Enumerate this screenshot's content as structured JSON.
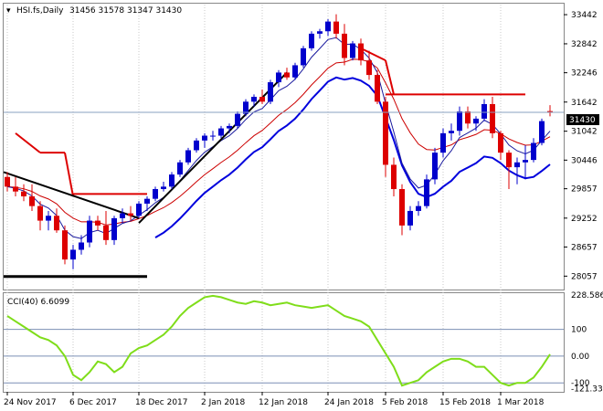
{
  "header": {
    "symbol": "HSI.fs,Daily",
    "ohlc": "31456 31578 31347 31430"
  },
  "price_axis": {
    "ticks": [
      "33442",
      "32842",
      "32246",
      "31642",
      "31042",
      "30446",
      "29857",
      "29252",
      "28657",
      "28057"
    ],
    "current_price_label": "31430"
  },
  "cci_panel": {
    "label": "CCI(40) 6.6099",
    "ticks": [
      "228.5862",
      "100",
      "0.00",
      "-100",
      "-121.337"
    ]
  },
  "date_axis": {
    "ticks": [
      "24 Nov 2017",
      "6 Dec 2017",
      "18 Dec 2017",
      "2 Jan 2018",
      "12 Jan 2018",
      "24 Jan 2018",
      "5 Feb 2018",
      "15 Feb 2018",
      "1 Mar 2018"
    ]
  },
  "colors": {
    "bull": "#0000cc",
    "bear": "#dd0000",
    "ma_fast": "#1a1a9e",
    "ma_slow": "#cc0000",
    "ma_long": "#0000dd",
    "stop_line": "#dd0000",
    "trendline": "#000000",
    "cci": "#7fdd1a",
    "grid": "#c8c8c8"
  },
  "chart_data": [
    {
      "type": "candlestick",
      "title": "HSI.fs,Daily",
      "ylim": [
        27800,
        33650
      ],
      "ohlc": [
        [
          30100,
          30200,
          29800,
          29900
        ],
        [
          29900,
          30100,
          29700,
          29800
        ],
        [
          29800,
          29950,
          29600,
          29700
        ],
        [
          29700,
          29950,
          29400,
          29500
        ],
        [
          29500,
          29600,
          29000,
          29200
        ],
        [
          29200,
          29400,
          29000,
          29300
        ],
        [
          29300,
          29450,
          28950,
          29000
        ],
        [
          29000,
          29100,
          28300,
          28400
        ],
        [
          28400,
          28700,
          28200,
          28600
        ],
        [
          28600,
          28900,
          28500,
          28750
        ],
        [
          28750,
          29300,
          28650,
          29200
        ],
        [
          29200,
          29300,
          29000,
          29100
        ],
        [
          29100,
          29400,
          28700,
          28800
        ],
        [
          28800,
          29300,
          28700,
          29250
        ],
        [
          29250,
          29450,
          29150,
          29350
        ],
        [
          29350,
          29500,
          29200,
          29300
        ],
        [
          29300,
          29600,
          29250,
          29550
        ],
        [
          29550,
          29700,
          29400,
          29650
        ],
        [
          29650,
          29900,
          29600,
          29850
        ],
        [
          29850,
          30000,
          29800,
          29900
        ],
        [
          29900,
          30200,
          29850,
          30150
        ],
        [
          30150,
          30450,
          30100,
          30400
        ],
        [
          30400,
          30700,
          30350,
          30650
        ],
        [
          30650,
          30900,
          30600,
          30850
        ],
        [
          30850,
          31000,
          30700,
          30950
        ],
        [
          30950,
          31050,
          30850,
          30950
        ],
        [
          30950,
          31150,
          30900,
          31100
        ],
        [
          31100,
          31200,
          31000,
          31150
        ],
        [
          31150,
          31450,
          31100,
          31400
        ],
        [
          31400,
          31700,
          31350,
          31650
        ],
        [
          31650,
          31800,
          31550,
          31750
        ],
        [
          31750,
          31900,
          31600,
          31650
        ],
        [
          31650,
          32100,
          31600,
          32050
        ],
        [
          32050,
          32300,
          31950,
          32250
        ],
        [
          32250,
          32350,
          32100,
          32150
        ],
        [
          32150,
          32450,
          32100,
          32400
        ],
        [
          32400,
          32800,
          32350,
          32750
        ],
        [
          32750,
          33100,
          32700,
          33050
        ],
        [
          33050,
          33150,
          32950,
          33100
        ],
        [
          33100,
          33350,
          33000,
          33300
        ],
        [
          33300,
          33450,
          32950,
          33050
        ],
        [
          33050,
          33250,
          32400,
          32550
        ],
        [
          32550,
          32900,
          32500,
          32850
        ],
        [
          32850,
          32950,
          32400,
          32500
        ],
        [
          32500,
          32700,
          32100,
          32200
        ],
        [
          32200,
          32300,
          31600,
          31650
        ],
        [
          31650,
          31750,
          30100,
          30350
        ],
        [
          30350,
          30500,
          29700,
          29850
        ],
        [
          29850,
          29950,
          28900,
          29100
        ],
        [
          29100,
          29500,
          29000,
          29400
        ],
        [
          29400,
          29600,
          29300,
          29500
        ],
        [
          29500,
          30150,
          29450,
          30050
        ],
        [
          30050,
          30700,
          29950,
          30600
        ],
        [
          30600,
          31100,
          30500,
          31000
        ],
        [
          31000,
          31200,
          30850,
          31050
        ],
        [
          31050,
          31550,
          30950,
          31450
        ],
        [
          31450,
          31550,
          31100,
          31200
        ],
        [
          31200,
          31350,
          31050,
          31300
        ],
        [
          31300,
          31700,
          31250,
          31600
        ],
        [
          31600,
          31750,
          30900,
          31000
        ],
        [
          31000,
          31050,
          30450,
          30600
        ],
        [
          30600,
          30650,
          29850,
          30300
        ],
        [
          30300,
          30500,
          29950,
          30400
        ],
        [
          30400,
          30750,
          30050,
          30450
        ],
        [
          30450,
          30900,
          30400,
          30800
        ],
        [
          30800,
          31300,
          30750,
          31250
        ],
        [
          31456,
          31578,
          31347,
          31430
        ]
      ]
    },
    {
      "type": "line",
      "title": "CCI(40) 6.6099",
      "ylim": [
        -130,
        235
      ],
      "values": [
        150,
        130,
        110,
        90,
        70,
        60,
        40,
        0,
        -70,
        -90,
        -60,
        -20,
        -30,
        -60,
        -40,
        10,
        30,
        40,
        60,
        80,
        110,
        150,
        180,
        200,
        220,
        225,
        220,
        210,
        200,
        195,
        205,
        200,
        190,
        195,
        200,
        190,
        185,
        180,
        185,
        190,
        170,
        150,
        140,
        130,
        110,
        60,
        10,
        -40,
        -110,
        -100,
        -90,
        -60,
        -40,
        -20,
        -10,
        -10,
        -20,
        -40,
        -40,
        -70,
        -100,
        -110,
        -100,
        -100,
        -80,
        -40,
        6.6099
      ]
    }
  ]
}
